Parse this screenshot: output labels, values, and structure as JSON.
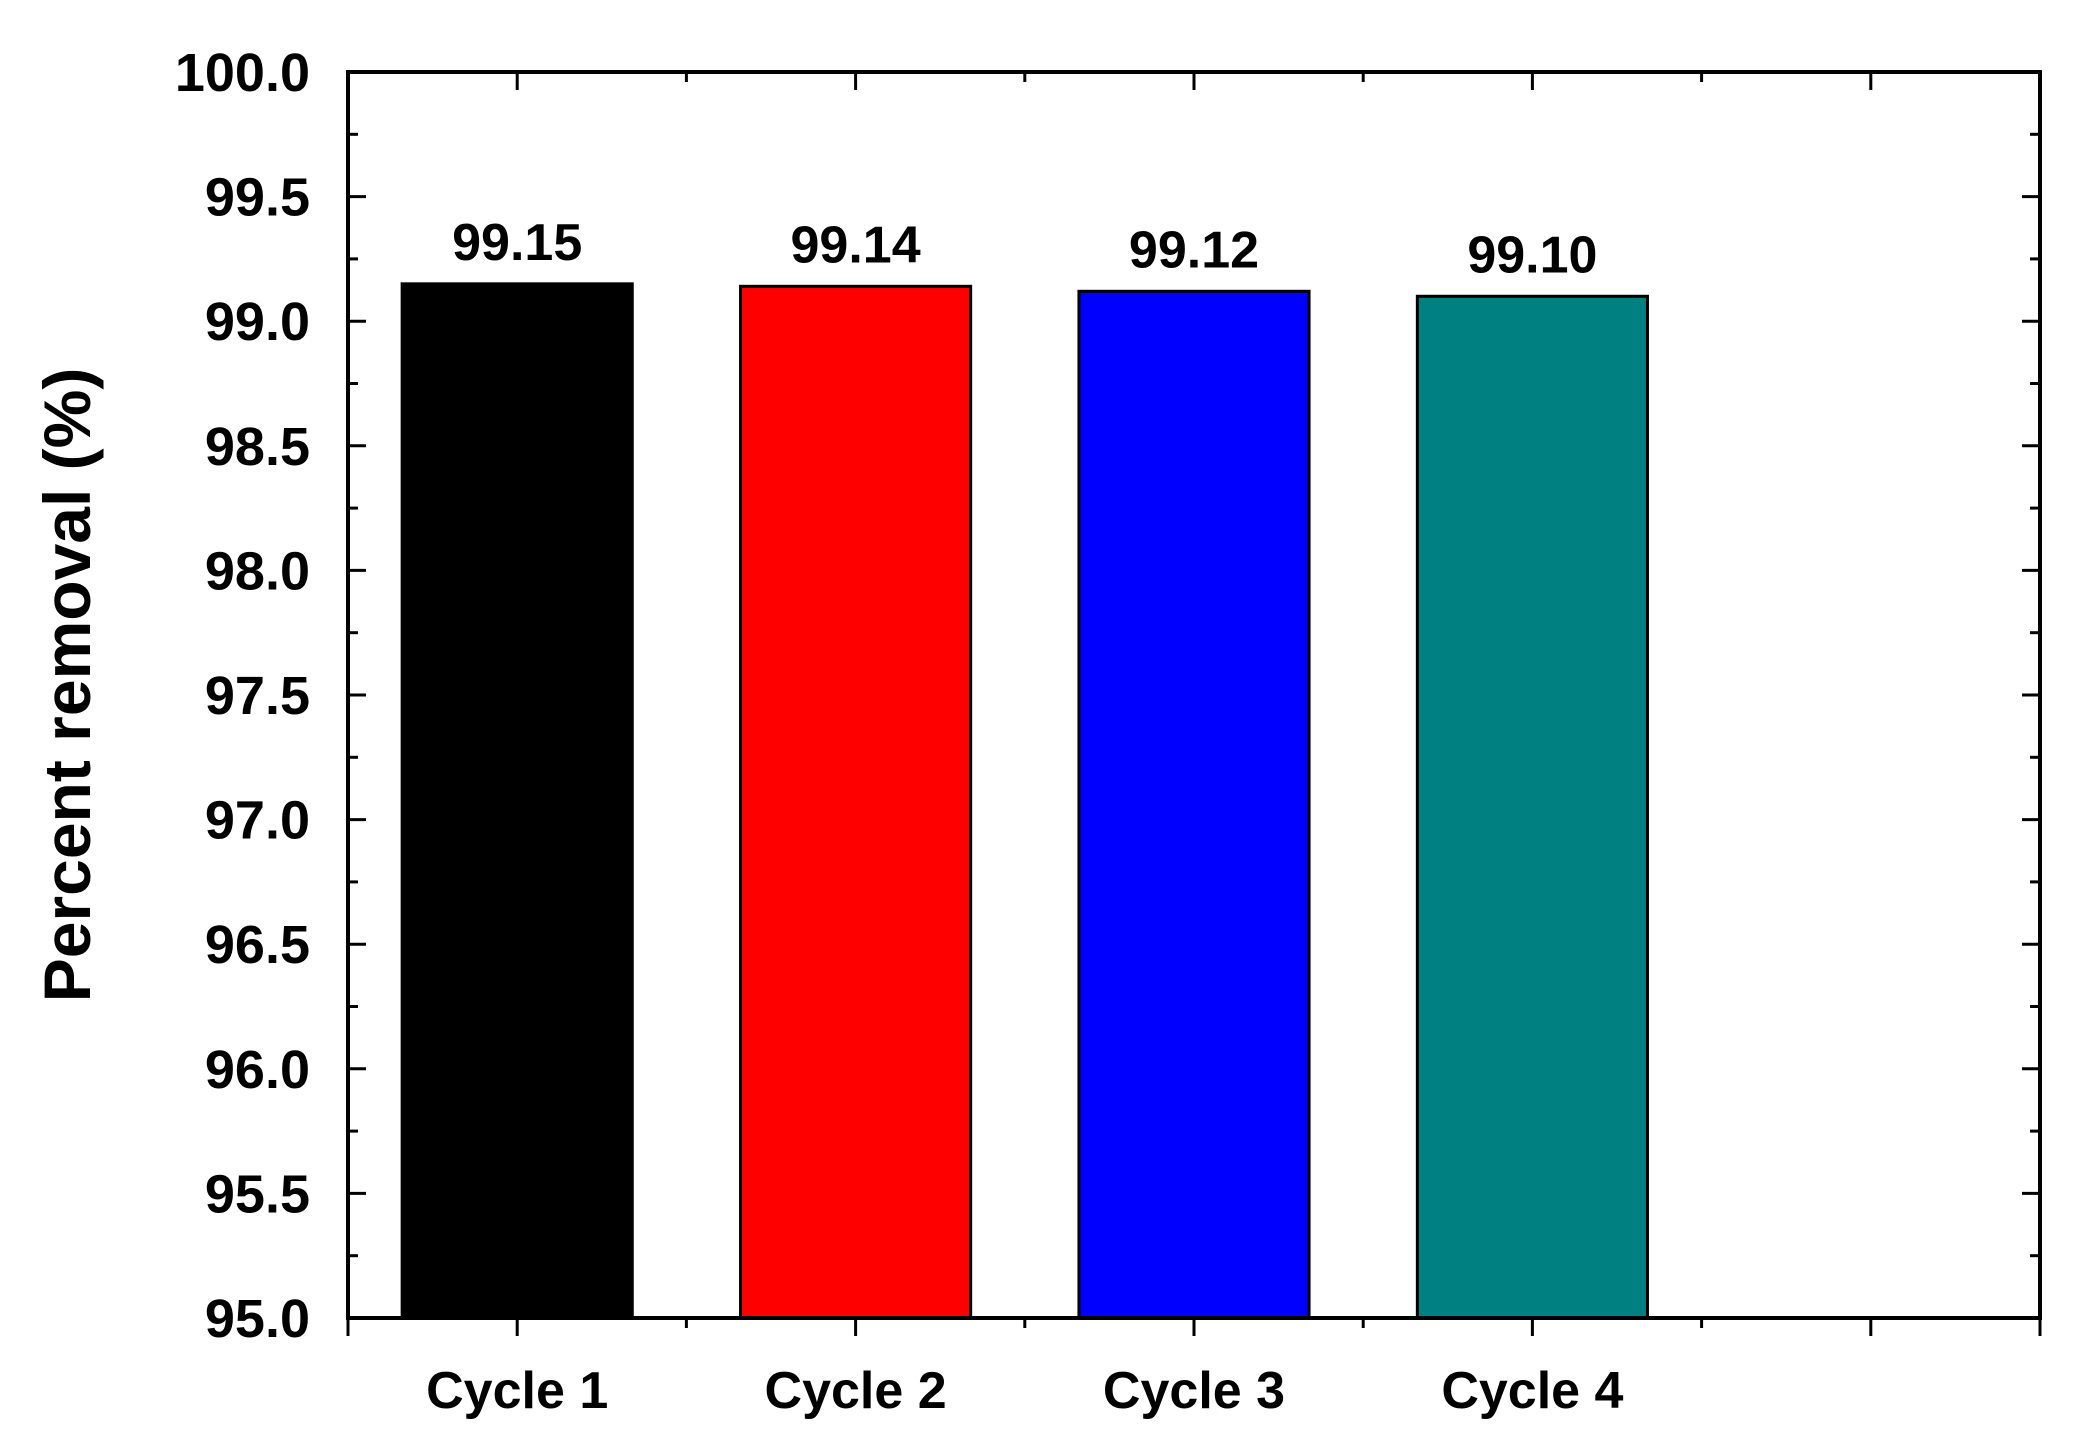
{
  "chart_data": {
    "type": "bar",
    "title": "",
    "xlabel": "",
    "ylabel": "Percent removal (%)",
    "categories": [
      "Cycle 1",
      "Cycle 2",
      "Cycle 3",
      "Cycle 4"
    ],
    "values": [
      99.15,
      99.14,
      99.12,
      99.1
    ],
    "data_labels": [
      "99.15",
      "99.14",
      "99.12",
      "99.10"
    ],
    "colors": [
      "#000000",
      "#ff0000",
      "#0000ff",
      "#008080"
    ],
    "ylim": [
      95.0,
      100.0
    ],
    "yticks": [
      "95.0",
      "95.5",
      "96.0",
      "96.5",
      "97.0",
      "97.5",
      "98.0",
      "98.5",
      "99.0",
      "99.5",
      "100.0"
    ],
    "grid": false,
    "legend": "none"
  }
}
